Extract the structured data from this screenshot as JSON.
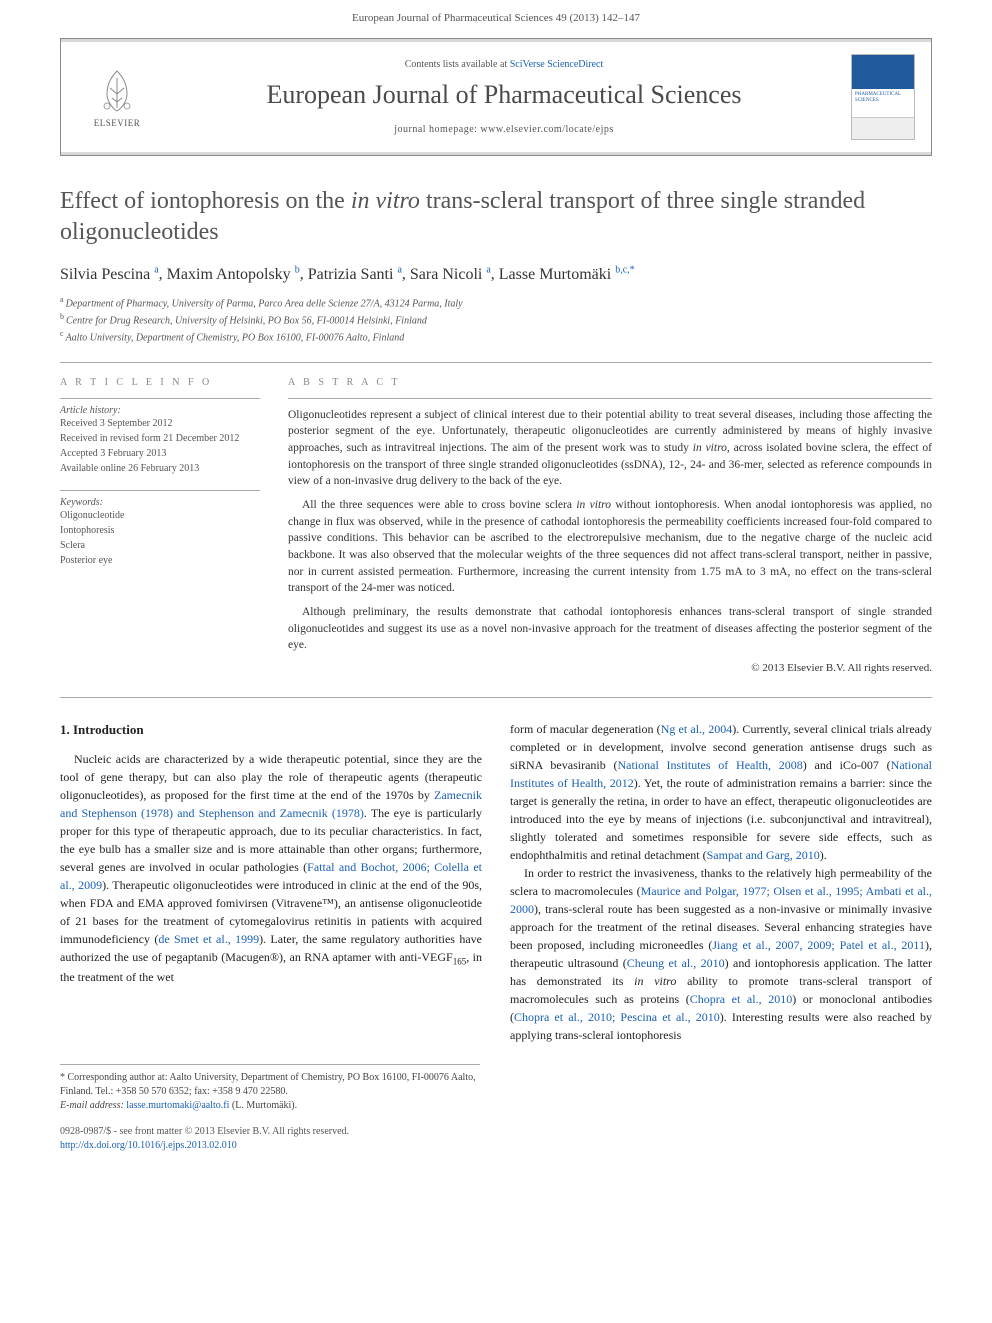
{
  "header": {
    "citation": "European Journal of Pharmaceutical Sciences 49 (2013) 142–147"
  },
  "banner": {
    "logo_text": "ELSEVIER",
    "contents_prefix": "Contents lists available at ",
    "contents_link": "SciVerse ScienceDirect",
    "journal_title": "European Journal of Pharmaceutical Sciences",
    "homepage": "journal homepage: www.elsevier.com/locate/ejps",
    "cover_text": "PHARMACEUTICAL SCIENCES"
  },
  "title_pre": "Effect of iontophoresis on the ",
  "title_italic": "in vitro",
  "title_post": " trans-scleral transport of three single stranded oligonucleotides",
  "authors": [
    {
      "name": "Silvia Pescina",
      "sup": "a"
    },
    {
      "name": "Maxim Antopolsky",
      "sup": "b"
    },
    {
      "name": "Patrizia Santi",
      "sup": "a"
    },
    {
      "name": "Sara Nicoli",
      "sup": "a"
    },
    {
      "name": "Lasse Murtomäki",
      "sup": "b,c,*"
    }
  ],
  "affiliations": [
    {
      "sup": "a",
      "text": "Department of Pharmacy, University of Parma, Parco Area delle Scienze 27/A, 43124 Parma, Italy"
    },
    {
      "sup": "b",
      "text": "Centre for Drug Research, University of Helsinki, PO Box 56, FI-00014 Helsinki, Finland"
    },
    {
      "sup": "c",
      "text": "Aalto University, Department of Chemistry, PO Box 16100, FI-00076 Aalto, Finland"
    }
  ],
  "article_info": {
    "heading": "A R T I C L E   I N F O",
    "history_label": "Article history:",
    "history": [
      "Received 3 September 2012",
      "Received in revised form 21 December 2012",
      "Accepted 3 February 2013",
      "Available online 26 February 2013"
    ],
    "keywords_label": "Keywords:",
    "keywords": [
      "Oligonucleotide",
      "Iontophoresis",
      "Sclera",
      "Posterior eye"
    ]
  },
  "abstract": {
    "heading": "A B S T R A C T",
    "p1_a": "Oligonucleotides represent a subject of clinical interest due to their potential ability to treat several diseases, including those affecting the posterior segment of the eye. Unfortunately, therapeutic oligonucleotides are currently administered by means of highly invasive approaches, such as intravitreal injections. The aim of the present work was to study ",
    "p1_it": "in vitro",
    "p1_b": ", across isolated bovine sclera, the effect of iontophoresis on the transport of three single stranded oligonucleotides (ssDNA), 12-, 24- and 36-mer, selected as reference compounds in view of a non-invasive drug delivery to the back of the eye.",
    "p2_a": "All the three sequences were able to cross bovine sclera ",
    "p2_it": "in vitro",
    "p2_b": " without iontophoresis. When anodal iontophoresis was applied, no change in flux was observed, while in the presence of cathodal iontophoresis the permeability coefficients increased four-fold compared to passive conditions. This behavior can be ascribed to the electrorepulsive mechanism, due to the negative charge of the nucleic acid backbone. It was also observed that the molecular weights of the three sequences did not affect trans-scleral transport, neither in passive, nor in current assisted permeation. Furthermore, increasing the current intensity from 1.75 mA to 3 mA, no effect on the trans-scleral transport of the 24-mer was noticed.",
    "p3": "Although preliminary, the results demonstrate that cathodal iontophoresis enhances trans-scleral transport of single stranded oligonucleotides and suggest its use as a novel non-invasive approach for the treatment of diseases affecting the posterior segment of the eye.",
    "copyright": "© 2013 Elsevier B.V. All rights reserved."
  },
  "body": {
    "section_heading": "1. Introduction",
    "left_p1_a": "Nucleic acids are characterized by a wide therapeutic potential, since they are the tool of gene therapy, but can also play the role of therapeutic agents (therapeutic oligonucleotides), as proposed for the first time at the end of the 1970s by ",
    "left_p1_link1": "Zamecnik and Stephenson (1978) and Stephenson and Zamecnik (1978)",
    "left_p1_b": ". The eye is particularly proper for this type of therapeutic approach, due to its peculiar characteristics. In fact, the eye bulb has a smaller size and is more attainable than other organs; furthermore, several genes are involved in ocular pathologies (",
    "left_p1_link2": "Fattal and Bochot, 2006; Colella et al., 2009",
    "left_p1_c": "). Therapeutic oligonucleotides were introduced in clinic at the end of the 90s, when FDA and EMA approved fomivirsen (Vitravene™), an antisense oligonucleotide of 21 bases for the treatment of cytomegalovirus retinitis in patients with acquired immunodeficiency (",
    "left_p1_link3": "de Smet et al., 1999",
    "left_p1_d": "). Later, the same regulatory authorities have authorized the use of pegaptanib (Macugen®), an RNA aptamer with anti-VEGF",
    "left_p1_sub": "165",
    "left_p1_e": ", in the treatment of the wet",
    "right_p1_a": "form of macular degeneration (",
    "right_p1_link1": "Ng et al., 2004",
    "right_p1_b": "). Currently, several clinical trials already completed or in development, involve second generation antisense drugs such as siRNA bevasiranib (",
    "right_p1_link2": "National Institutes of Health, 2008",
    "right_p1_c": ") and iCo-007 (",
    "right_p1_link3": "National Institutes of Health, 2012",
    "right_p1_d": "). Yet, the route of administration remains a barrier: since the target is generally the retina, in order to have an effect, therapeutic oligonucleotides are introduced into the eye by means of injections (i.e. subconjunctival and intravitreal), slightly tolerated and sometimes responsible for severe side effects, such as endophthalmitis and retinal detachment (",
    "right_p1_link4": "Sampat and Garg, 2010",
    "right_p1_e": ").",
    "right_p2_a": "In order to restrict the invasiveness, thanks to the relatively high permeability of the sclera to macromolecules (",
    "right_p2_link1": "Maurice and Polgar, 1977; Olsen et al., 1995; Ambati et al., 2000",
    "right_p2_b": "), trans-scleral route has been suggested as a non-invasive or minimally invasive approach for the treatment of the retinal diseases. Several enhancing strategies have been proposed, including microneedles (",
    "right_p2_link2": "Jiang et al., 2007, 2009; Patel et al., 2011",
    "right_p2_c": "), therapeutic ultrasound (",
    "right_p2_link3": "Cheung et al., 2010",
    "right_p2_d": ") and iontophoresis application. The latter has demonstrated its ",
    "right_p2_it": "in vitro",
    "right_p2_e": " ability to promote trans-scleral transport of macromolecules such as proteins (",
    "right_p2_link4": "Chopra et al., 2010",
    "right_p2_f": ") or monoclonal antibodies (",
    "right_p2_link5": "Chopra et al., 2010; Pescina et al., 2010",
    "right_p2_g": "). Interesting results were also reached by applying trans-scleral iontophoresis"
  },
  "footnote": {
    "star": "*",
    "text_a": " Corresponding author at: Aalto University, Department of Chemistry, PO Box 16100, FI-00076 Aalto, Finland. Tel.: +358 50 570 6352; fax: +358 9 470 22580.",
    "email_label": "E-mail address: ",
    "email": "lasse.murtomaki@aalto.fi",
    "email_suffix": " (L. Murtomäki)."
  },
  "footer": {
    "line1": "0928-0987/$ - see front matter © 2013 Elsevier B.V. All rights reserved.",
    "doi": "http://dx.doi.org/10.1016/j.ejps.2013.02.010"
  }
}
